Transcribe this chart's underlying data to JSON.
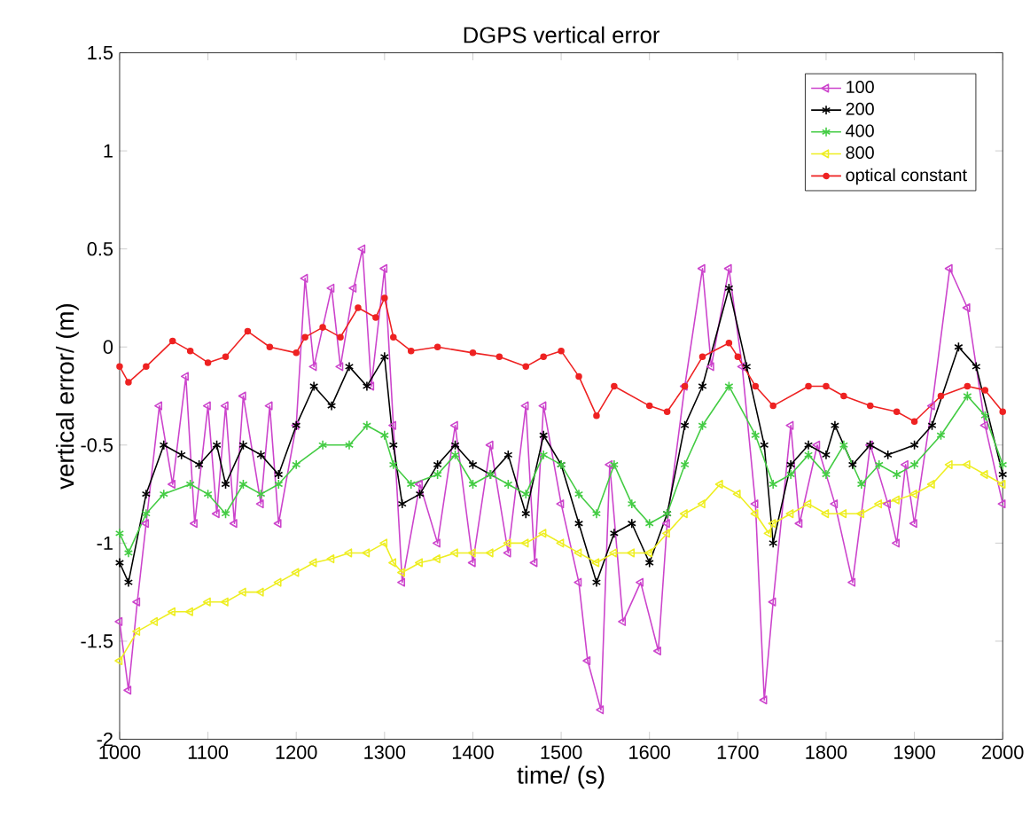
{
  "chart_data": {
    "type": "line",
    "title": "DGPS vertical error",
    "xlabel": "time/ (s)",
    "ylabel": "vertical error/ (m)",
    "xlim": [
      1000,
      2000
    ],
    "ylim": [
      -2,
      1.5
    ],
    "xticks": [
      1000,
      1100,
      1200,
      1300,
      1400,
      1500,
      1600,
      1700,
      1800,
      1900,
      2000
    ],
    "yticks": [
      -2,
      -1.5,
      -1,
      -0.5,
      0,
      0.5,
      1,
      1.5
    ],
    "grid": false,
    "legend": "top right",
    "line_style": "solid",
    "series": [
      {
        "name": "100",
        "color": "#cc44cc",
        "marker": "triangle",
        "x": [
          1000,
          1010,
          1020,
          1030,
          1045,
          1060,
          1075,
          1085,
          1100,
          1110,
          1120,
          1130,
          1140,
          1160,
          1170,
          1180,
          1200,
          1210,
          1220,
          1240,
          1250,
          1265,
          1275,
          1285,
          1300,
          1310,
          1320,
          1340,
          1360,
          1380,
          1400,
          1420,
          1440,
          1460,
          1470,
          1480,
          1500,
          1520,
          1530,
          1545,
          1555,
          1570,
          1590,
          1610,
          1620,
          1640,
          1660,
          1670,
          1690,
          1705,
          1720,
          1730,
          1740,
          1760,
          1770,
          1790,
          1810,
          1830,
          1850,
          1870,
          1880,
          1890,
          1900,
          1920,
          1940,
          1960,
          1980,
          2000
        ],
        "values": [
          -1.4,
          -1.75,
          -1.3,
          -0.9,
          -0.3,
          -0.7,
          -0.15,
          -0.9,
          -0.3,
          -0.85,
          -0.3,
          -0.9,
          -0.25,
          -0.8,
          -0.3,
          -0.9,
          -0.4,
          0.35,
          -0.1,
          0.3,
          -0.1,
          0.3,
          0.5,
          -0.2,
          0.4,
          -0.4,
          -1.2,
          -0.7,
          -1.0,
          -0.4,
          -1.1,
          -0.5,
          -1.05,
          -0.3,
          -1.1,
          -0.3,
          -0.8,
          -1.2,
          -1.6,
          -1.85,
          -0.6,
          -1.4,
          -1.2,
          -1.55,
          -0.9,
          -0.2,
          0.4,
          -0.1,
          0.4,
          -0.1,
          -0.8,
          -1.8,
          -1.3,
          -0.4,
          -0.9,
          -0.5,
          -0.8,
          -1.2,
          -0.5,
          -0.8,
          -1.0,
          -0.6,
          -0.9,
          -0.3,
          0.4,
          0.2,
          -0.4,
          -0.8
        ]
      },
      {
        "name": "200",
        "color": "#000000",
        "marker": "cross",
        "x": [
          1000,
          1010,
          1030,
          1050,
          1070,
          1090,
          1110,
          1120,
          1140,
          1160,
          1180,
          1200,
          1220,
          1240,
          1260,
          1280,
          1300,
          1310,
          1320,
          1340,
          1360,
          1380,
          1400,
          1420,
          1440,
          1460,
          1480,
          1500,
          1520,
          1540,
          1560,
          1580,
          1600,
          1620,
          1640,
          1660,
          1690,
          1710,
          1730,
          1740,
          1760,
          1780,
          1800,
          1810,
          1830,
          1850,
          1870,
          1900,
          1920,
          1950,
          1970,
          2000
        ],
        "values": [
          -1.1,
          -1.2,
          -0.75,
          -0.5,
          -0.55,
          -0.6,
          -0.5,
          -0.7,
          -0.5,
          -0.55,
          -0.65,
          -0.4,
          -0.2,
          -0.3,
          -0.1,
          -0.2,
          -0.05,
          -0.5,
          -0.8,
          -0.75,
          -0.6,
          -0.5,
          -0.6,
          -0.65,
          -0.55,
          -0.85,
          -0.45,
          -0.6,
          -0.9,
          -1.2,
          -0.95,
          -0.9,
          -1.1,
          -0.85,
          -0.4,
          -0.2,
          0.3,
          -0.1,
          -0.5,
          -1.0,
          -0.6,
          -0.5,
          -0.55,
          -0.4,
          -0.6,
          -0.5,
          -0.55,
          -0.5,
          -0.4,
          0.0,
          -0.1,
          -0.65
        ]
      },
      {
        "name": "400",
        "color": "#44cc44",
        "marker": "cross",
        "x": [
          1000,
          1010,
          1030,
          1050,
          1080,
          1100,
          1120,
          1140,
          1160,
          1180,
          1200,
          1230,
          1260,
          1280,
          1300,
          1310,
          1330,
          1360,
          1380,
          1400,
          1420,
          1440,
          1460,
          1480,
          1500,
          1520,
          1540,
          1560,
          1580,
          1600,
          1620,
          1640,
          1660,
          1690,
          1720,
          1740,
          1760,
          1780,
          1800,
          1820,
          1840,
          1860,
          1880,
          1900,
          1930,
          1960,
          1980,
          2000
        ],
        "values": [
          -0.95,
          -1.05,
          -0.85,
          -0.75,
          -0.7,
          -0.75,
          -0.85,
          -0.7,
          -0.75,
          -0.7,
          -0.6,
          -0.5,
          -0.5,
          -0.4,
          -0.45,
          -0.6,
          -0.7,
          -0.65,
          -0.55,
          -0.7,
          -0.65,
          -0.7,
          -0.75,
          -0.55,
          -0.6,
          -0.75,
          -0.85,
          -0.6,
          -0.8,
          -0.9,
          -0.85,
          -0.6,
          -0.4,
          -0.2,
          -0.45,
          -0.7,
          -0.65,
          -0.55,
          -0.65,
          -0.5,
          -0.7,
          -0.6,
          -0.65,
          -0.6,
          -0.45,
          -0.25,
          -0.35,
          -0.6
        ]
      },
      {
        "name": "800",
        "color": "#eeee22",
        "marker": "triangle",
        "x": [
          1000,
          1020,
          1040,
          1060,
          1080,
          1100,
          1120,
          1140,
          1160,
          1180,
          1200,
          1220,
          1240,
          1260,
          1280,
          1300,
          1310,
          1320,
          1340,
          1360,
          1380,
          1400,
          1420,
          1440,
          1460,
          1480,
          1500,
          1520,
          1540,
          1560,
          1580,
          1600,
          1620,
          1640,
          1660,
          1680,
          1700,
          1720,
          1735,
          1740,
          1760,
          1780,
          1800,
          1820,
          1840,
          1860,
          1880,
          1900,
          1920,
          1940,
          1960,
          1980,
          2000
        ],
        "values": [
          -1.6,
          -1.45,
          -1.4,
          -1.35,
          -1.35,
          -1.3,
          -1.3,
          -1.25,
          -1.25,
          -1.2,
          -1.15,
          -1.1,
          -1.08,
          -1.05,
          -1.05,
          -1.0,
          -1.1,
          -1.15,
          -1.1,
          -1.08,
          -1.05,
          -1.05,
          -1.05,
          -1.0,
          -1.0,
          -0.95,
          -1.0,
          -1.05,
          -1.1,
          -1.05,
          -1.05,
          -1.05,
          -0.95,
          -0.85,
          -0.8,
          -0.7,
          -0.75,
          -0.85,
          -0.95,
          -0.9,
          -0.85,
          -0.8,
          -0.85,
          -0.85,
          -0.85,
          -0.8,
          -0.78,
          -0.75,
          -0.7,
          -0.6,
          -0.6,
          -0.65,
          -0.7
        ]
      },
      {
        "name": "optical constant",
        "color": "#ee2222",
        "marker": "circle",
        "x": [
          1000,
          1010,
          1030,
          1060,
          1080,
          1100,
          1120,
          1145,
          1170,
          1200,
          1210,
          1230,
          1250,
          1270,
          1290,
          1300,
          1310,
          1330,
          1360,
          1400,
          1430,
          1460,
          1480,
          1500,
          1520,
          1540,
          1560,
          1600,
          1620,
          1640,
          1660,
          1690,
          1700,
          1720,
          1740,
          1780,
          1800,
          1820,
          1850,
          1880,
          1900,
          1930,
          1960,
          1980,
          2000
        ],
        "values": [
          -0.1,
          -0.18,
          -0.1,
          0.03,
          -0.02,
          -0.08,
          -0.05,
          0.08,
          0.0,
          -0.03,
          0.05,
          0.1,
          0.05,
          0.2,
          0.15,
          0.25,
          0.05,
          -0.02,
          0.0,
          -0.03,
          -0.05,
          -0.1,
          -0.05,
          -0.02,
          -0.15,
          -0.35,
          -0.2,
          -0.3,
          -0.33,
          -0.2,
          -0.05,
          0.02,
          -0.05,
          -0.2,
          -0.3,
          -0.2,
          -0.2,
          -0.25,
          -0.3,
          -0.33,
          -0.38,
          -0.25,
          -0.2,
          -0.22,
          -0.33
        ]
      }
    ]
  }
}
